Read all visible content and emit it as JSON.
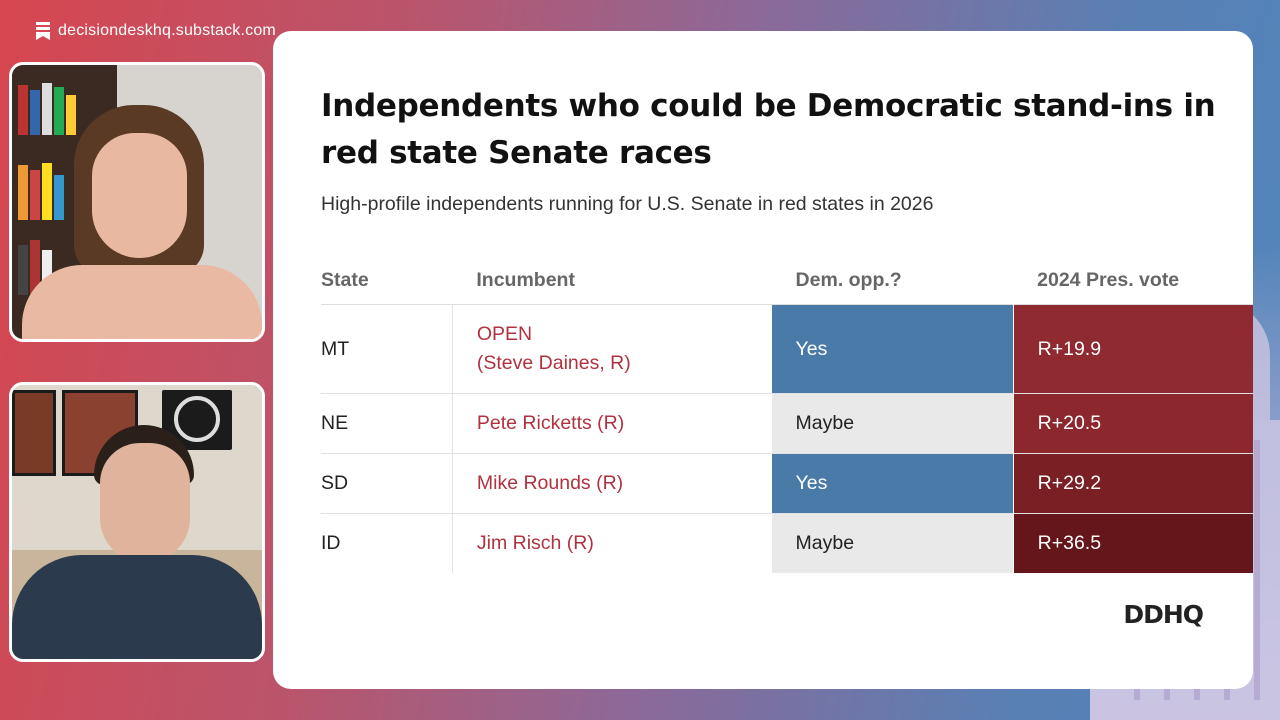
{
  "source": {
    "text": "decisiondeskhq.substack.com",
    "icon": "bookmark-icon"
  },
  "slide": {
    "title": "Independents who could be Democratic stand-ins in red state Senate races",
    "subtitle": "High-profile independents running for U.S. Senate in red states in 2026",
    "table": {
      "headers": [
        "State",
        "Incumbent",
        "Dem. opp.?",
        "2024 Pres. vote"
      ],
      "rows": [
        {
          "state": "MT",
          "incumbent_line1": "OPEN",
          "incumbent_line2": "(Steve Daines, R)",
          "dem_opp": "Yes",
          "pres_vote": "R+19.9",
          "pres_color": "#8f2a31"
        },
        {
          "state": "NE",
          "incumbent_line1": "Pete Ricketts (R)",
          "incumbent_line2": "",
          "dem_opp": "Maybe",
          "pres_vote": "R+20.5",
          "pres_color": "#8d272e"
        },
        {
          "state": "SD",
          "incumbent_line1": "Mike Rounds (R)",
          "incumbent_line2": "",
          "dem_opp": "Yes",
          "pres_vote": "R+29.2",
          "pres_color": "#7a1f24"
        },
        {
          "state": "ID",
          "incumbent_line1": "Jim Risch (R)",
          "incumbent_line2": "",
          "dem_opp": "Maybe",
          "pres_vote": "R+36.5",
          "pres_color": "#64161b"
        }
      ]
    },
    "logo": "DDHQ"
  },
  "colors": {
    "yes": "#4a7aa8",
    "maybe": "#e9e9e9",
    "incumbent_text": "#b0323f"
  }
}
